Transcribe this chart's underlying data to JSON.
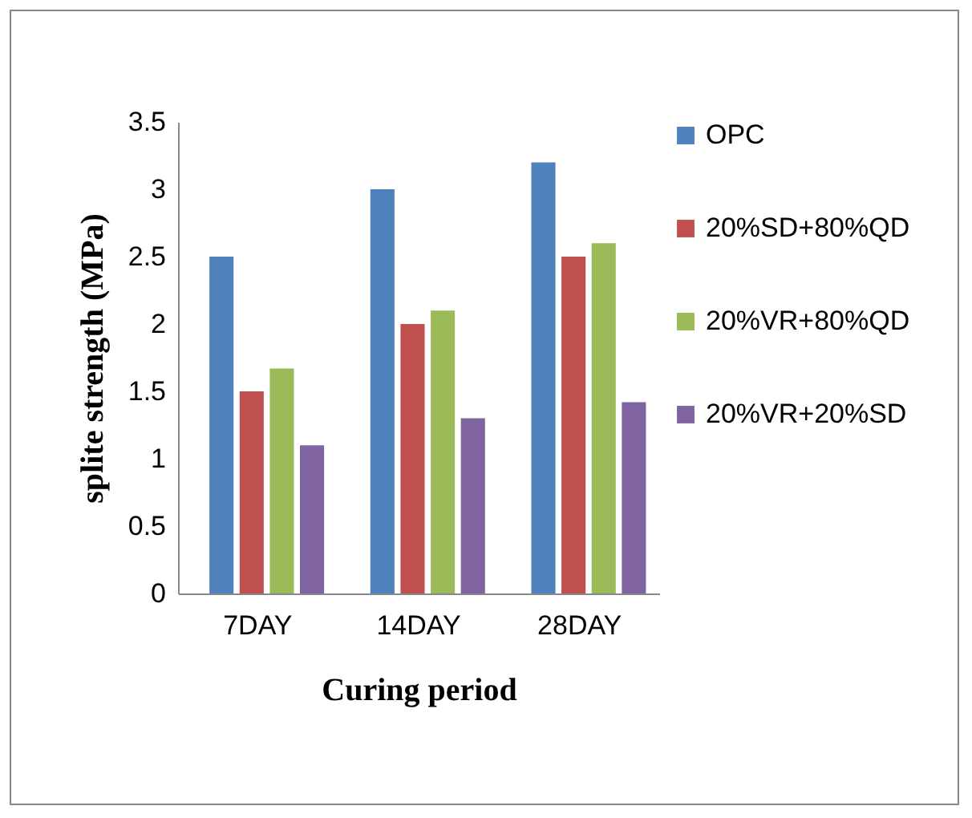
{
  "chart_data": {
    "type": "bar",
    "xlabel": "Curing period",
    "ylabel": "splite  strength (MPa)",
    "categories": [
      "7DAY",
      "14DAY",
      "28DAY"
    ],
    "series": [
      {
        "name": "OPC",
        "color": "#4f81bd",
        "values": [
          2.5,
          3.0,
          3.2
        ]
      },
      {
        "name": "20%SD+80%QD",
        "color": "#c0504d",
        "values": [
          1.5,
          2.0,
          2.5
        ]
      },
      {
        "name": "20%VR+80%QD",
        "color": "#9bbb59",
        "values": [
          1.67,
          2.1,
          2.6
        ]
      },
      {
        "name": "20%VR+20%SD",
        "color": "#8064a2",
        "values": [
          1.1,
          1.3,
          1.42
        ]
      }
    ],
    "ylim": [
      0,
      3.5
    ],
    "yticks": [
      0,
      0.5,
      1,
      1.5,
      2,
      2.5,
      3,
      3.5
    ],
    "grid": false,
    "legend": "right"
  }
}
